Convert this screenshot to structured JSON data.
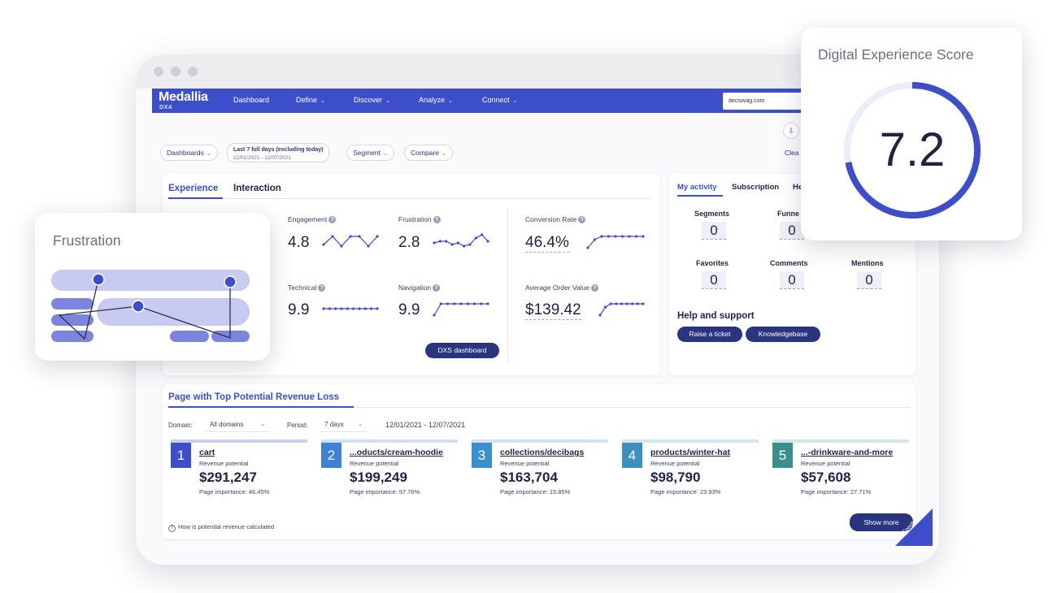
{
  "app": {
    "logo": "Medallia",
    "logo_sub": "DXA"
  },
  "nav": {
    "items": [
      {
        "label": "Dashboard",
        "chev": ""
      },
      {
        "label": "Define",
        "chev": "⌄"
      },
      {
        "label": "Discover",
        "chev": "⌄"
      },
      {
        "label": "Analyze",
        "chev": "⌄"
      },
      {
        "label": "Connect",
        "chev": "⌄"
      }
    ],
    "domain_value": "decisivag.com"
  },
  "filters": {
    "dashboards": "Dashboards",
    "date_line1": "Last 7 full days (excluding today)",
    "date_line2": "12/01/2021 - 12/07/2021",
    "segment": "Segment",
    "compare": "Compare",
    "clear": "Clea",
    "download_icon": "⇩",
    "chev": "⌄"
  },
  "experience": {
    "tabs": [
      "Experience",
      "Interaction"
    ],
    "metrics": [
      {
        "label": "Engagement",
        "value": "4.8",
        "spark": [
          3,
          8,
          2,
          8,
          8,
          2,
          8
        ]
      },
      {
        "label": "Frustration",
        "value": "2.8",
        "spark": [
          4,
          5,
          5,
          3,
          4,
          2,
          3,
          7,
          9,
          5
        ]
      },
      {
        "label": "Technical",
        "value": "9.9",
        "spark": [
          5,
          5,
          5,
          5,
          5,
          5,
          5,
          5,
          5,
          5
        ]
      },
      {
        "label": "Navigation",
        "value": "9.9",
        "spark": [
          1,
          8,
          8,
          8,
          8,
          8,
          8,
          8,
          8
        ]
      },
      {
        "label": "Conversion Rate",
        "value": "46.4%",
        "spark": [
          1,
          6,
          8,
          8,
          8,
          8,
          8,
          8,
          8
        ]
      },
      {
        "label": "Average Order Value",
        "value": "$139.42",
        "spark": [
          1,
          6,
          8,
          8,
          8,
          8,
          8,
          8,
          8
        ]
      }
    ],
    "help_glyph": "?",
    "dxs_button": "DXS dashboard"
  },
  "activity": {
    "tabs": [
      "My activity",
      "Subscription",
      "He"
    ],
    "stats": [
      {
        "label": "Segments",
        "value": "0"
      },
      {
        "label": "Funne",
        "value": "0"
      },
      {
        "label": "Favorites",
        "value": "0"
      },
      {
        "label": "Comments",
        "value": "0"
      },
      {
        "label": "Mentions",
        "value": "0"
      }
    ],
    "help_title": "Help and support",
    "buttons": [
      "Raise a ticket",
      "Knowledgebase"
    ]
  },
  "revenue": {
    "title": "Page with Top Potential Revenue Loss",
    "domain_label": "Domain:",
    "domain_value": "All domains",
    "period_label": "Period:",
    "period_value": "7 days",
    "date_range": "12/01/2021 - 12/07/2021",
    "pages": [
      {
        "num": "1",
        "path": "cart",
        "rp_label": "Revenue potential",
        "revenue": "$291,247",
        "importance": "Page importance: 46.45%",
        "color": "#3d4ecb",
        "bar_color": "#c9cef5"
      },
      {
        "num": "2",
        "path": "...oducts/cream-hoodie",
        "rp_label": "Revenue potential",
        "revenue": "$199,249",
        "importance": "Page importance: 57.76%",
        "color": "#3e82d6",
        "bar_color": "#cfe0f6"
      },
      {
        "num": "3",
        "path": "collections/decibags",
        "rp_label": "Revenue potential",
        "revenue": "$163,704",
        "importance": "Page importance: 15.85%",
        "color": "#3a8fcf",
        "bar_color": "#cfe4f2"
      },
      {
        "num": "4",
        "path": "products/winter-hat",
        "rp_label": "Revenue potential",
        "revenue": "$98,790",
        "importance": "Page importance: 23.93%",
        "color": "#3d8fbd",
        "bar_color": "#d2e6ee"
      },
      {
        "num": "5",
        "path": "...-drinkware-and-more",
        "rp_label": "Revenue potential",
        "revenue": "$57,608",
        "importance": "Page importance: 27.71%",
        "color": "#3a8f8c",
        "bar_color": "#d1e8e6"
      }
    ],
    "how_calculated": "How is potential revenue calculated",
    "show_more": "Show more",
    "feedback": "Feedback"
  },
  "score": {
    "title": "Digital Experience Score",
    "value": "7.2",
    "fraction": 0.72,
    "ring_color": "#3d4ecb",
    "track_color": "#eceef7"
  },
  "frustration_card": {
    "title": "Frustration"
  },
  "colors": {
    "brand": "#3d4ecb",
    "dark": "#2a3580"
  }
}
